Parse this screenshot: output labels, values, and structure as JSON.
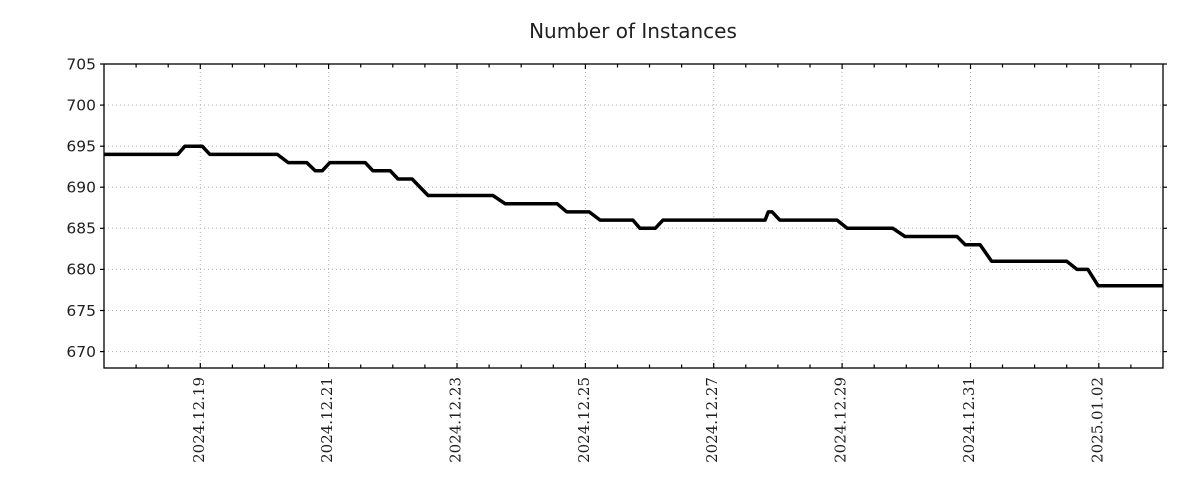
{
  "chart_data": {
    "type": "line",
    "title": "Number of Instances",
    "legend": "none",
    "grid": {
      "style": "dotted",
      "color": "#b0b0b0"
    },
    "frame_color": "#000000",
    "text_color": "#1f1f1f",
    "x_axis": {
      "domain_days": [
        0,
        16.5
      ],
      "tick_days": [
        1.5,
        3.5,
        5.5,
        7.5,
        9.5,
        11.5,
        13.5,
        15.5
      ],
      "tick_labels": [
        "2024.12.19",
        "2024.12.21",
        "2024.12.23",
        "2024.12.25",
        "2024.12.27",
        "2024.12.29",
        "2024.12.31",
        "2025.01.02"
      ],
      "minor_tick_step_days": 0.5,
      "tick_label_rotation_deg": -90
    },
    "y_axis": {
      "min": 668,
      "max": 705,
      "ticks": [
        670,
        675,
        680,
        685,
        690,
        695,
        700,
        705
      ],
      "tick_labels": [
        "670",
        "675",
        "680",
        "685",
        "690",
        "695",
        "700",
        "705"
      ]
    },
    "series": [
      {
        "name": "Number of Instances",
        "color": "#000000",
        "points": [
          [
            0.0,
            694
          ],
          [
            1.15,
            694
          ],
          [
            1.26,
            695
          ],
          [
            1.53,
            695
          ],
          [
            1.65,
            694
          ],
          [
            2.7,
            694
          ],
          [
            2.87,
            693
          ],
          [
            3.16,
            693
          ],
          [
            3.29,
            692
          ],
          [
            3.4,
            692
          ],
          [
            3.52,
            693
          ],
          [
            4.07,
            693
          ],
          [
            4.19,
            692
          ],
          [
            4.46,
            692
          ],
          [
            4.58,
            691
          ],
          [
            4.8,
            691
          ],
          [
            5.05,
            689
          ],
          [
            6.06,
            689
          ],
          [
            6.25,
            688
          ],
          [
            7.06,
            688
          ],
          [
            7.21,
            687
          ],
          [
            7.56,
            687
          ],
          [
            7.73,
            686
          ],
          [
            8.24,
            686
          ],
          [
            8.35,
            685
          ],
          [
            8.59,
            685
          ],
          [
            8.71,
            686
          ],
          [
            10.3,
            686
          ],
          [
            10.35,
            687
          ],
          [
            10.41,
            687
          ],
          [
            10.53,
            686
          ],
          [
            11.42,
            686
          ],
          [
            11.58,
            685
          ],
          [
            12.29,
            685
          ],
          [
            12.48,
            684
          ],
          [
            13.29,
            684
          ],
          [
            13.42,
            683
          ],
          [
            13.65,
            683
          ],
          [
            13.83,
            681
          ],
          [
            15.0,
            681
          ],
          [
            15.16,
            680
          ],
          [
            15.33,
            680
          ],
          [
            15.49,
            678
          ],
          [
            16.5,
            678
          ]
        ]
      }
    ]
  }
}
